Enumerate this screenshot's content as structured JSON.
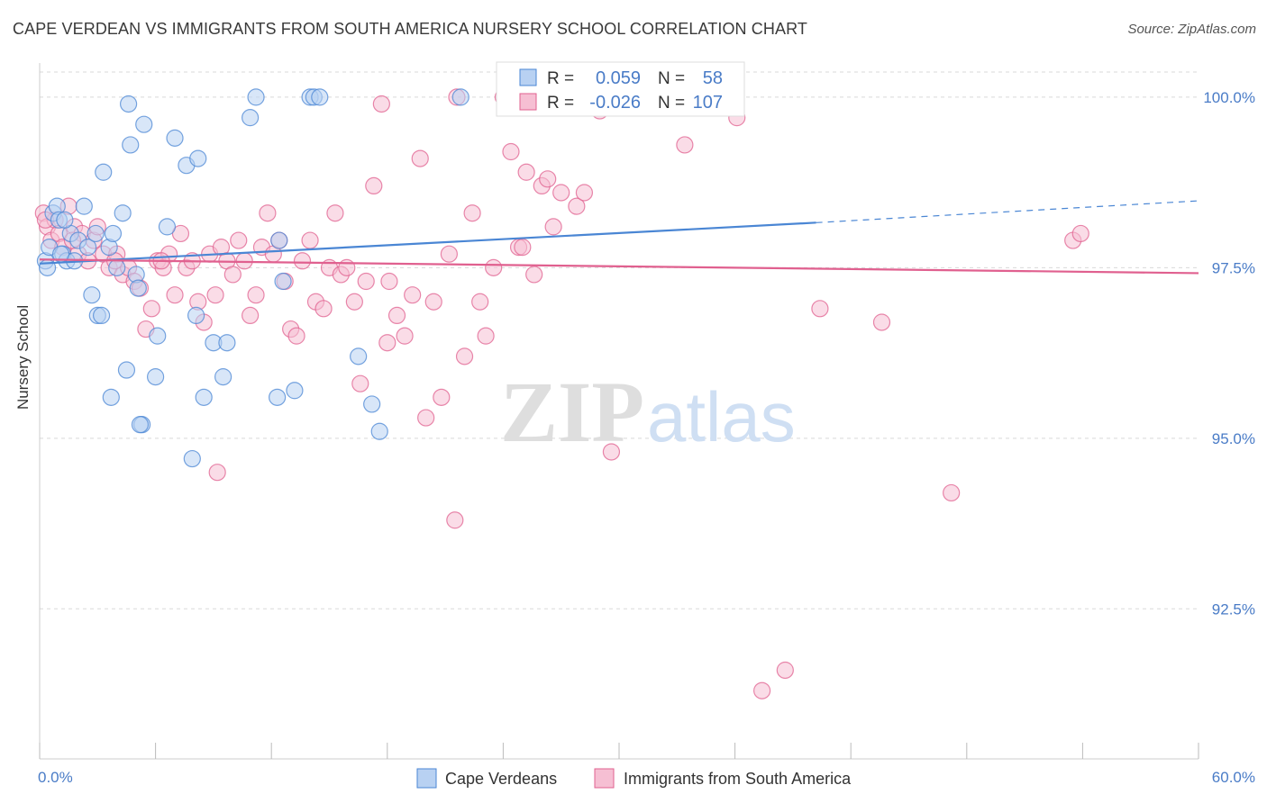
{
  "title": "CAPE VERDEAN VS IMMIGRANTS FROM SOUTH AMERICA NURSERY SCHOOL CORRELATION CHART",
  "source": "Source: ZipAtlas.com",
  "watermark": {
    "zip": "ZIP",
    "atlas": "atlas"
  },
  "colors": {
    "blue": "#4a86d4",
    "blue_fill": "#b8d1f2",
    "pink": "#e0608f",
    "pink_fill": "#f6bfd3",
    "axis_label": "#4a7cc7",
    "grid": "#d9d9d9"
  },
  "legend": {
    "r_label": "R =",
    "n_label": "N =",
    "rows": [
      {
        "r": "0.059",
        "n": "58"
      },
      {
        "r": "-0.026",
        "n": "107"
      }
    ]
  },
  "chart_data": {
    "type": "scatter",
    "title": "CAPE VERDEAN VS IMMIGRANTS FROM SOUTH AMERICA NURSERY SCHOOL CORRELATION CHART",
    "xlabel": "",
    "ylabel": "Nursery School",
    "xlim": [
      0,
      60
    ],
    "ylim": [
      90.3,
      100.5
    ],
    "x_tick_labels": [
      "0.0%",
      "60.0%"
    ],
    "y_ticks": [
      92.5,
      95.0,
      97.5,
      100.0
    ],
    "y_tick_labels": [
      "92.5%",
      "95.0%",
      "97.5%",
      "100.0%"
    ],
    "grid": true,
    "legend_position": "bottom",
    "series": [
      {
        "name": "Cape Verdeans",
        "color": "blue",
        "trend": {
          "x": [
            0,
            40.2
          ],
          "y": [
            97.56,
            98.16
          ],
          "dashed_to": [
            60,
            98.48
          ]
        },
        "points": [
          [
            0.3,
            97.6
          ],
          [
            0.5,
            97.8
          ],
          [
            0.7,
            98.3
          ],
          [
            0.9,
            98.4
          ],
          [
            1.0,
            98.2
          ],
          [
            1.2,
            97.7
          ],
          [
            1.4,
            97.6
          ],
          [
            1.6,
            98.0
          ],
          [
            1.8,
            97.6
          ],
          [
            2.0,
            97.9
          ],
          [
            2.3,
            98.4
          ],
          [
            2.5,
            97.8
          ],
          [
            2.7,
            97.1
          ],
          [
            3.0,
            96.8
          ],
          [
            3.2,
            96.8
          ],
          [
            3.3,
            98.9
          ],
          [
            3.6,
            97.8
          ],
          [
            3.8,
            98.0
          ],
          [
            4.0,
            97.5
          ],
          [
            4.3,
            98.3
          ],
          [
            4.5,
            96.0
          ],
          [
            4.6,
            99.9
          ],
          [
            4.7,
            99.3
          ],
          [
            5.0,
            97.4
          ],
          [
            5.1,
            97.2
          ],
          [
            5.3,
            95.2
          ],
          [
            5.4,
            99.6
          ],
          [
            6.0,
            95.9
          ],
          [
            6.1,
            96.5
          ],
          [
            6.6,
            98.1
          ],
          [
            7.0,
            99.4
          ],
          [
            7.6,
            99.0
          ],
          [
            8.2,
            99.1
          ],
          [
            8.1,
            96.8
          ],
          [
            8.5,
            95.6
          ],
          [
            9.0,
            96.4
          ],
          [
            9.5,
            95.9
          ],
          [
            9.7,
            96.4
          ],
          [
            10.9,
            99.7
          ],
          [
            11.2,
            100.0
          ],
          [
            12.3,
            95.6
          ],
          [
            12.4,
            97.9
          ],
          [
            12.6,
            97.3
          ],
          [
            13.2,
            95.7
          ],
          [
            14.0,
            100.0
          ],
          [
            14.2,
            100.0
          ],
          [
            14.5,
            100.0
          ],
          [
            16.5,
            96.2
          ],
          [
            17.2,
            95.5
          ],
          [
            17.6,
            95.1
          ],
          [
            21.8,
            100.0
          ],
          [
            3.7,
            95.6
          ],
          [
            2.9,
            98.0
          ],
          [
            1.1,
            97.7
          ],
          [
            5.2,
            95.2
          ],
          [
            7.9,
            94.7
          ],
          [
            0.4,
            97.5
          ],
          [
            1.3,
            98.2
          ]
        ]
      },
      {
        "name": "Immigrants from South America",
        "color": "pink",
        "trend": {
          "x": [
            0,
            60
          ],
          "y": [
            97.62,
            97.42
          ]
        },
        "points": [
          [
            0.2,
            98.3
          ],
          [
            0.4,
            98.1
          ],
          [
            0.6,
            97.9
          ],
          [
            0.8,
            98.2
          ],
          [
            1.0,
            98.0
          ],
          [
            1.2,
            97.8
          ],
          [
            1.5,
            98.4
          ],
          [
            1.8,
            98.1
          ],
          [
            2.0,
            97.7
          ],
          [
            2.2,
            98.0
          ],
          [
            2.5,
            97.6
          ],
          [
            2.8,
            97.9
          ],
          [
            3.0,
            98.1
          ],
          [
            3.3,
            97.7
          ],
          [
            3.6,
            97.5
          ],
          [
            4.0,
            97.7
          ],
          [
            4.3,
            97.4
          ],
          [
            4.6,
            97.5
          ],
          [
            4.9,
            97.3
          ],
          [
            5.2,
            97.2
          ],
          [
            5.5,
            96.6
          ],
          [
            5.8,
            96.9
          ],
          [
            6.1,
            97.6
          ],
          [
            6.4,
            97.5
          ],
          [
            6.7,
            97.7
          ],
          [
            7.0,
            97.1
          ],
          [
            7.3,
            98.0
          ],
          [
            7.6,
            97.5
          ],
          [
            7.9,
            97.6
          ],
          [
            8.2,
            97.0
          ],
          [
            8.5,
            96.7
          ],
          [
            8.8,
            97.7
          ],
          [
            9.1,
            97.1
          ],
          [
            9.4,
            97.8
          ],
          [
            9.7,
            97.6
          ],
          [
            10.0,
            97.4
          ],
          [
            10.3,
            97.9
          ],
          [
            10.6,
            97.6
          ],
          [
            10.9,
            96.8
          ],
          [
            11.2,
            97.1
          ],
          [
            11.5,
            97.8
          ],
          [
            11.8,
            98.3
          ],
          [
            12.1,
            97.7
          ],
          [
            12.4,
            97.9
          ],
          [
            12.7,
            97.3
          ],
          [
            13.0,
            96.6
          ],
          [
            13.3,
            96.5
          ],
          [
            13.6,
            97.6
          ],
          [
            14.0,
            97.9
          ],
          [
            14.3,
            97.0
          ],
          [
            14.7,
            96.9
          ],
          [
            15.0,
            97.5
          ],
          [
            15.3,
            98.3
          ],
          [
            15.6,
            97.4
          ],
          [
            15.9,
            97.5
          ],
          [
            16.3,
            97.0
          ],
          [
            16.6,
            95.8
          ],
          [
            16.9,
            97.3
          ],
          [
            17.3,
            98.7
          ],
          [
            17.7,
            99.9
          ],
          [
            18.1,
            97.3
          ],
          [
            18.5,
            96.8
          ],
          [
            18.9,
            96.5
          ],
          [
            19.3,
            97.1
          ],
          [
            19.7,
            99.1
          ],
          [
            20.0,
            95.3
          ],
          [
            20.4,
            97.0
          ],
          [
            20.8,
            95.6
          ],
          [
            21.2,
            97.7
          ],
          [
            21.6,
            100.0
          ],
          [
            22.0,
            96.2
          ],
          [
            22.4,
            98.3
          ],
          [
            22.8,
            97.0
          ],
          [
            23.1,
            96.5
          ],
          [
            23.5,
            97.5
          ],
          [
            24.0,
            100.0
          ],
          [
            24.4,
            99.2
          ],
          [
            24.8,
            97.8
          ],
          [
            25.2,
            98.9
          ],
          [
            25.6,
            97.4
          ],
          [
            26.0,
            98.7
          ],
          [
            26.3,
            98.8
          ],
          [
            26.6,
            98.1
          ],
          [
            27.0,
            98.6
          ],
          [
            27.4,
            100.0
          ],
          [
            27.8,
            98.4
          ],
          [
            28.2,
            98.6
          ],
          [
            29.0,
            99.8
          ],
          [
            29.6,
            94.8
          ],
          [
            33.4,
            99.3
          ],
          [
            35.0,
            99.9
          ],
          [
            36.1,
            99.7
          ],
          [
            37.4,
            91.3
          ],
          [
            38.6,
            91.6
          ],
          [
            40.4,
            96.9
          ],
          [
            43.6,
            96.7
          ],
          [
            47.2,
            94.2
          ],
          [
            53.5,
            97.9
          ],
          [
            53.9,
            98.0
          ],
          [
            9.2,
            94.5
          ],
          [
            21.5,
            93.8
          ],
          [
            18.0,
            96.4
          ],
          [
            25.0,
            97.8
          ],
          [
            0.3,
            98.2
          ],
          [
            1.7,
            97.9
          ],
          [
            3.9,
            97.6
          ],
          [
            6.3,
            97.6
          ]
        ]
      }
    ]
  }
}
